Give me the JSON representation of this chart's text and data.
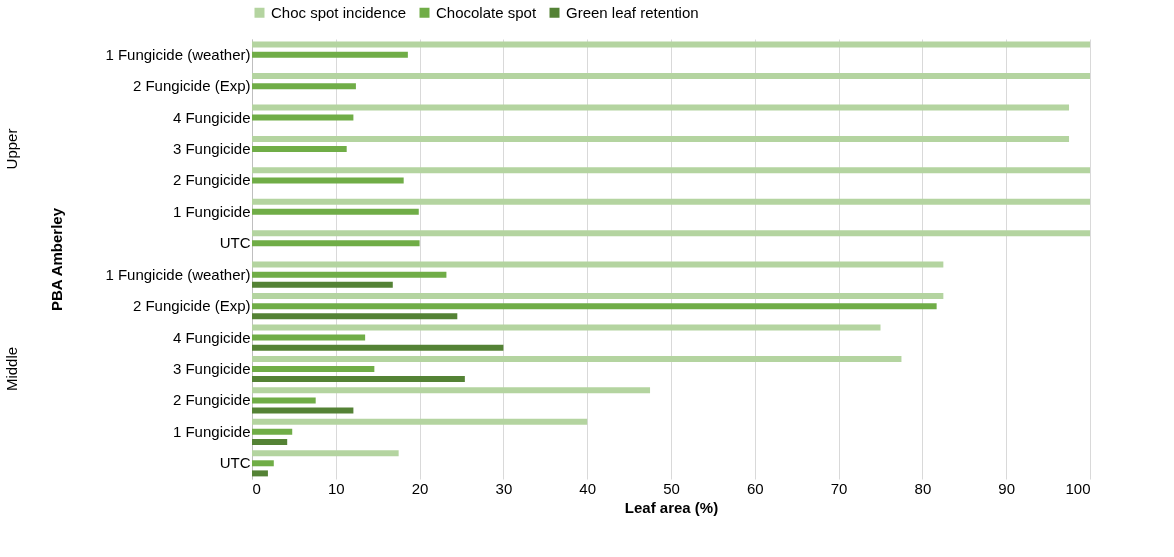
{
  "chart_data": {
    "type": "bar",
    "orientation": "horizontal",
    "xlabel": "Leaf area (%)",
    "ylabel": "PBA Amberley",
    "categories": [
      "1 Fungicide (weather)",
      "2 Fungicide (Exp)",
      "4 Fungicide",
      "3 Fungicide",
      "2 Fungicide",
      "1 Fungicide",
      "UTC",
      "1 Fungicide (weather)",
      "2 Fungicide (Exp)",
      "4 Fungicide",
      "3 Fungicide",
      "2 Fungicide",
      "1 Fungicide",
      "UTC"
    ],
    "series": [
      {
        "name": "Choc spot incidence",
        "color": "#b4d4a0",
        "values": [
          100,
          100,
          97.5,
          97.5,
          100,
          100,
          100,
          82.5,
          82.5,
          75,
          77.5,
          47.5,
          40,
          17.5
        ]
      },
      {
        "name": "Chocolate spot",
        "color": "#70ad47",
        "values": [
          18.6,
          12.4,
          12.1,
          11.3,
          18.1,
          19.9,
          20,
          23.2,
          81.7,
          13.5,
          14.6,
          7.6,
          4.8,
          2.6
        ]
      },
      {
        "name": "Green leaf retention",
        "color": "#548235",
        "values": [
          null,
          null,
          null,
          null,
          null,
          null,
          null,
          16.8,
          24.5,
          30,
          25.4,
          12.1,
          4.2,
          1.9
        ]
      }
    ],
    "annotations": [
      "Upper",
      "Middle"
    ],
    "xlim": [
      0,
      100
    ],
    "xticks": [
      0,
      10,
      20,
      30,
      40,
      50,
      60,
      70,
      80,
      90,
      100
    ],
    "grid": "x",
    "legend": "top"
  }
}
